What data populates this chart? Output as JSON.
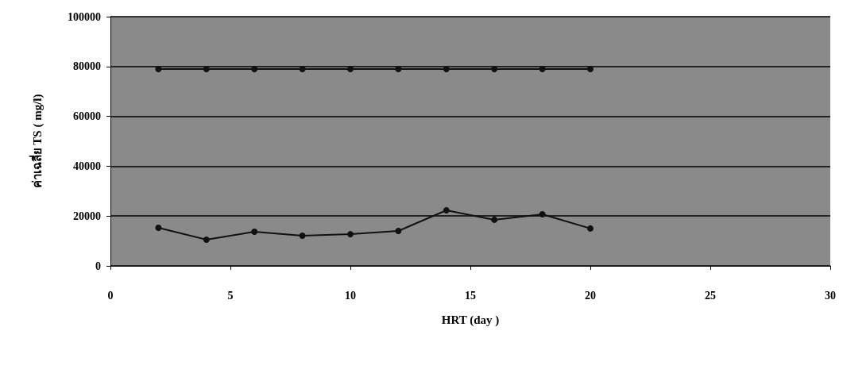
{
  "chart_data": {
    "type": "line",
    "xlabel": "HRT (day )",
    "ylabel": "ค่าเฉลี่ย TS ( mg/l)",
    "x": [
      2,
      4,
      6,
      8,
      10,
      12,
      14,
      16,
      18,
      20
    ],
    "series": [
      {
        "color": "#111111",
        "values": [
          79000,
          79000,
          79000,
          79000,
          79000,
          79000,
          79000,
          79000,
          79000,
          79000
        ]
      },
      {
        "color": "#111111",
        "values": [
          15300,
          10500,
          13700,
          12100,
          12700,
          14000,
          22300,
          18500,
          20700,
          15000
        ]
      }
    ],
    "xlim": [
      0,
      30
    ],
    "xticks": [
      0,
      5,
      10,
      15,
      20,
      25,
      30
    ],
    "ylim": [
      0,
      100000
    ],
    "yticks": [
      0,
      20000,
      40000,
      60000,
      80000,
      100000
    ],
    "grid": "y",
    "marker": "circle",
    "line_style": "solid"
  }
}
